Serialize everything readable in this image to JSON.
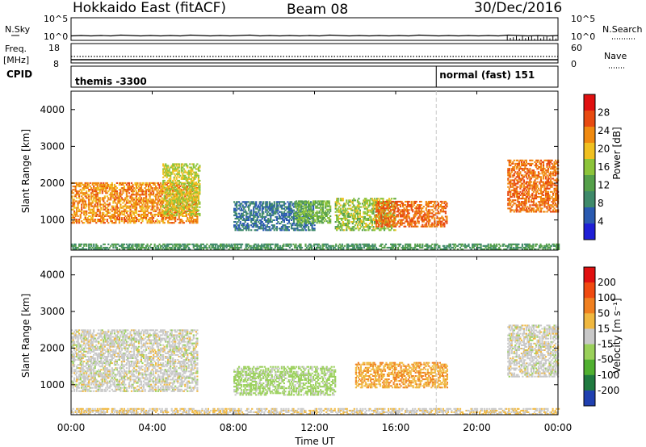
{
  "header": {
    "radar": "Hokkaido East (fitACF)",
    "beam": "Beam 08",
    "date": "30/Dec/2016"
  },
  "summary": {
    "left_top_label": "N.Sky",
    "left_ticks": [
      "10^5",
      "10^0"
    ],
    "right_ticks": [
      "10^5",
      "10^0"
    ],
    "right_label": "N.Search",
    "noise_sky": [
      1.1,
      1.2,
      1.1,
      1.2,
      1.1,
      1.3,
      1.2,
      1.1,
      1.2,
      1.1,
      1.2,
      1.1,
      1.3,
      1.2,
      1.1,
      1.2,
      1.1,
      1.2,
      1.3,
      1.1,
      1.2,
      1.1,
      1.2,
      1.1,
      1.2,
      1.1,
      1.3,
      1.2,
      1.1,
      1.2,
      1.1,
      1.2,
      1.1,
      1.2,
      1.1,
      1.3,
      1.2,
      1.1,
      1.2,
      1.1,
      1.2,
      1.1,
      1.2,
      1.1,
      1.3,
      1.2,
      1.1,
      1.2,
      1.1,
      1.2
    ]
  },
  "freq": {
    "label": "Freq.",
    "unit": "[MHz]",
    "left_ticks": [
      "18",
      "8"
    ],
    "right_ticks": [
      "60",
      "0"
    ],
    "right_label": "Nave",
    "cpid_label": "CPID",
    "cpid_segments": [
      "themis -3300",
      "normal (fast) 151"
    ],
    "cpid_change_hour": 18.0
  },
  "time_axis": {
    "label": "Time UT",
    "ticks": [
      "00:00",
      "04:00",
      "08:00",
      "12:00",
      "16:00",
      "20:00",
      "00:00"
    ],
    "range_hours": [
      0,
      24
    ]
  },
  "chart_data": [
    {
      "type": "heatmap",
      "panel": "power",
      "ylabel": "Slant Range [km]",
      "ylim": [
        180,
        4500
      ],
      "yticks": [
        "1000",
        "2000",
        "3000",
        "4000"
      ],
      "colorbar_label": "Power [dB]",
      "colorbar_ticks": [
        "4",
        "8",
        "12",
        "16",
        "20",
        "24",
        "28"
      ],
      "colorbar_range": [
        0,
        32
      ],
      "colors": [
        "#1f1fd6",
        "#2a5ab0",
        "#3f8a6a",
        "#55a04a",
        "#8cc43a",
        "#f0c020",
        "#f08a10",
        "#e84a10",
        "#e01010"
      ],
      "regions": [
        {
          "t": [
            0,
            6.2
          ],
          "r": [
            900,
            2000
          ],
          "level": 24
        },
        {
          "t": [
            4.5,
            6.3
          ],
          "r": [
            1100,
            2500
          ],
          "level": 18
        },
        {
          "t": [
            8,
            12
          ],
          "r": [
            700,
            1500
          ],
          "level": 6
        },
        {
          "t": [
            11,
            12.8
          ],
          "r": [
            900,
            1500
          ],
          "level": 14
        },
        {
          "t": [
            13,
            16
          ],
          "r": [
            700,
            1600
          ],
          "level": 16
        },
        {
          "t": [
            15,
            18.5
          ],
          "r": [
            800,
            1500
          ],
          "level": 26
        },
        {
          "t": [
            21.5,
            24
          ],
          "r": [
            1200,
            2600
          ],
          "level": 26
        },
        {
          "t": [
            0,
            24
          ],
          "r": [
            180,
            350
          ],
          "level": 10
        }
      ]
    },
    {
      "type": "heatmap",
      "panel": "velocity",
      "ylabel": "Slant Range [km]",
      "ylim": [
        180,
        4500
      ],
      "yticks": [
        "1000",
        "2000",
        "3000",
        "4000"
      ],
      "colorbar_label": "Velocity [m s⁻¹]",
      "colorbar_ticks": [
        "200",
        "100",
        "50",
        "15",
        "-15",
        "-50",
        "-100",
        "-200"
      ],
      "colors": [
        "#2040b0",
        "#207a40",
        "#50b030",
        "#9ad05a",
        "#c8c8c8",
        "#f0b840",
        "#f08020",
        "#f04a10",
        "#e01010"
      ],
      "regions": [
        {
          "t": [
            0,
            6.2
          ],
          "r": [
            800,
            2500
          ],
          "level": 0
        },
        {
          "t": [
            8,
            13
          ],
          "r": [
            700,
            1500
          ],
          "level": 25
        },
        {
          "t": [
            14,
            18.5
          ],
          "r": [
            900,
            1600
          ],
          "level": -45
        },
        {
          "t": [
            21.5,
            24
          ],
          "r": [
            1200,
            2600
          ],
          "level": 0
        },
        {
          "t": [
            0,
            24
          ],
          "r": [
            180,
            350
          ],
          "level": -10
        }
      ]
    }
  ]
}
